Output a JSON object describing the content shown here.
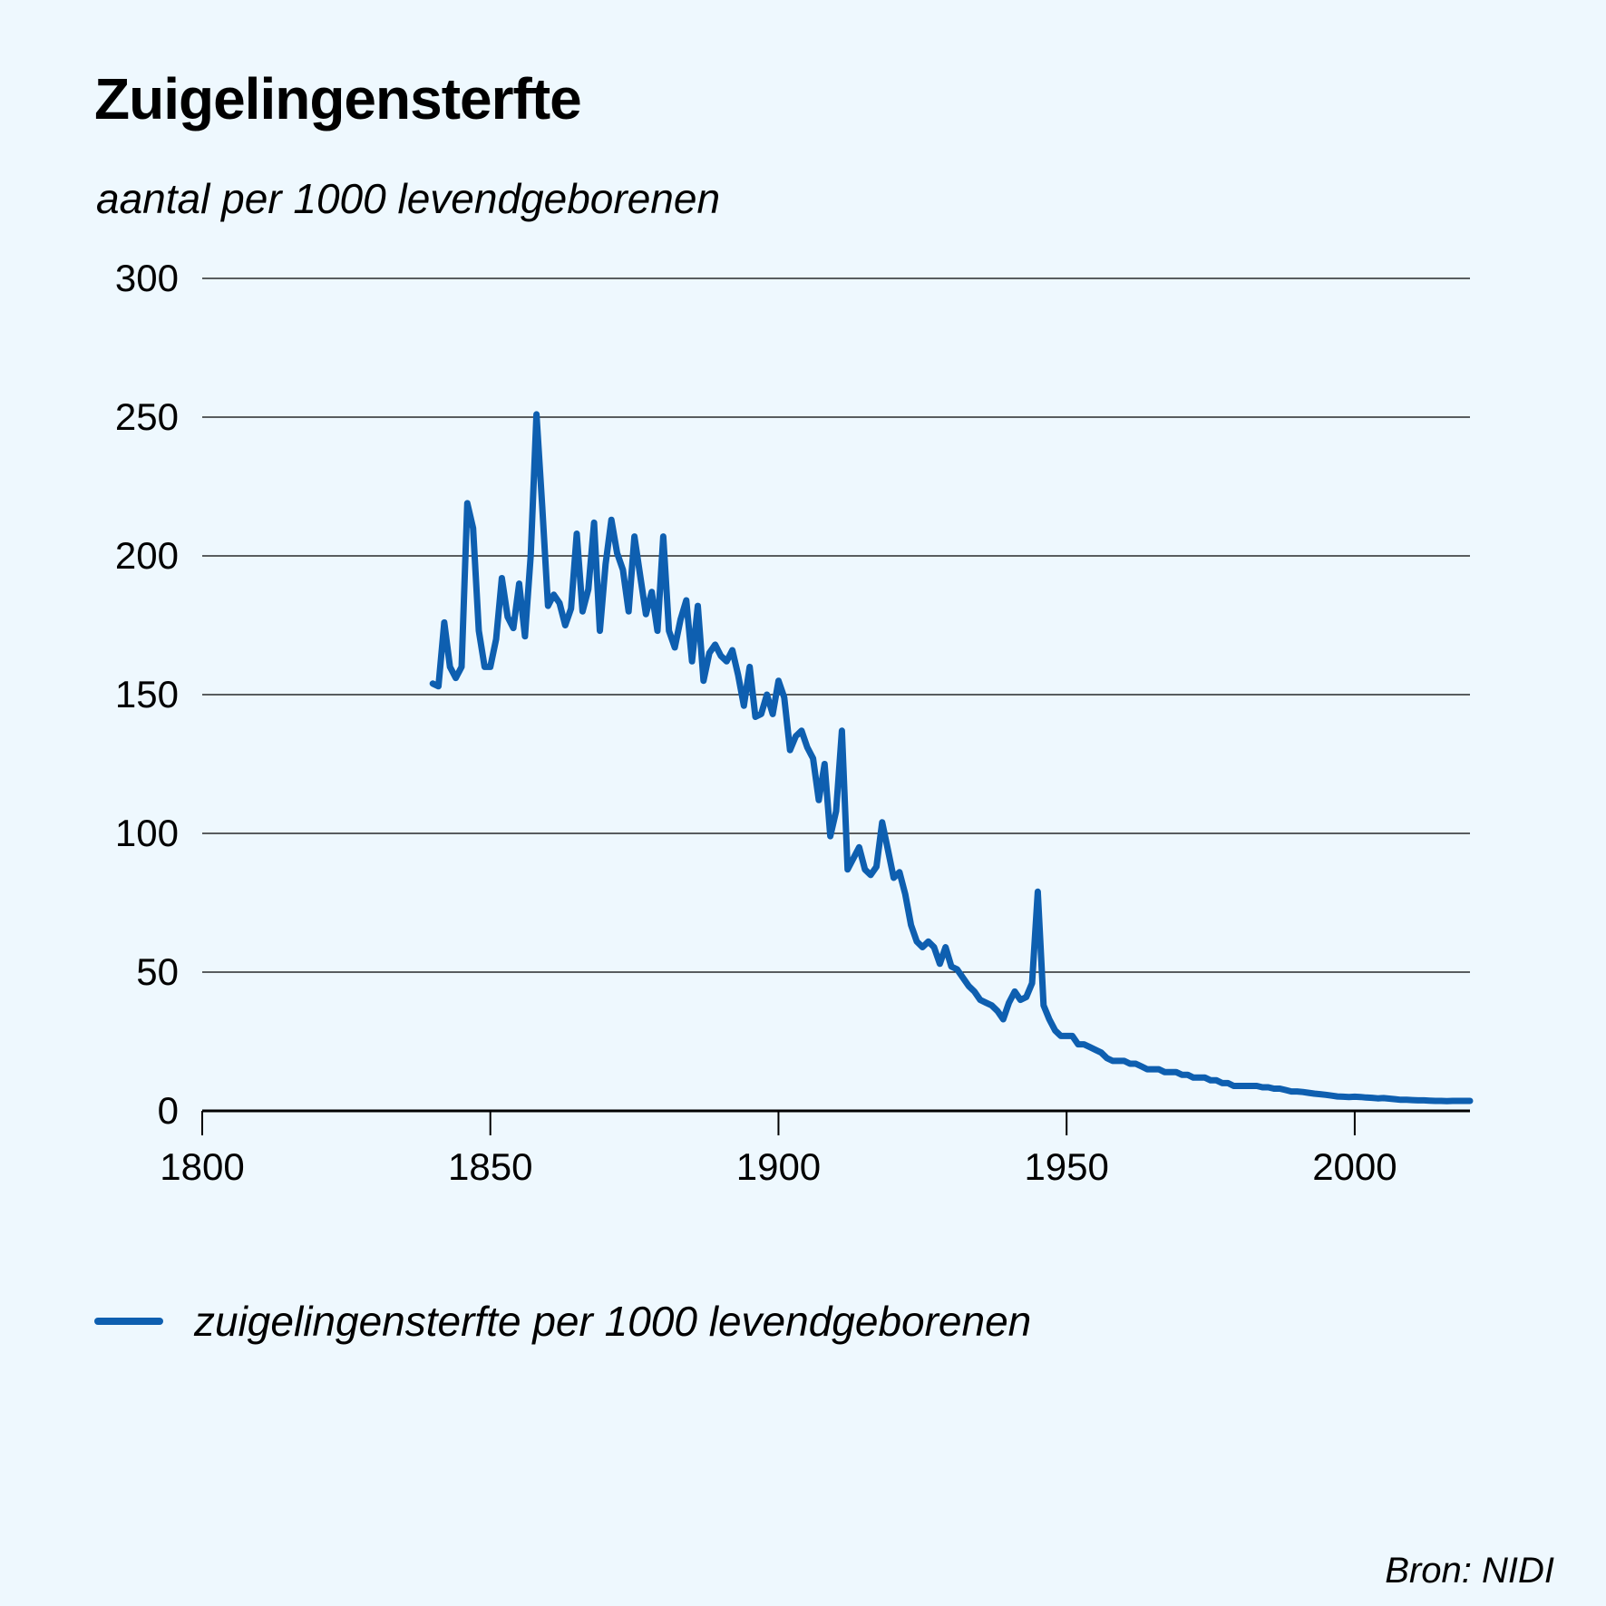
{
  "chart_data": {
    "type": "line",
    "title": "Zuigelingensterfte",
    "subtitle": "aantal per 1000 levendgeborenen",
    "xlim": [
      1800,
      2020
    ],
    "ylim": [
      0,
      300
    ],
    "x_ticks": [
      1800,
      1850,
      1900,
      1950,
      2000
    ],
    "y_ticks": [
      0,
      50,
      100,
      150,
      200,
      250,
      300
    ],
    "grid": "horizontal",
    "legend_position": "bottom-left",
    "source": "Bron: NIDI",
    "colors": {
      "line": "#0e5fb0",
      "axis": "#000000",
      "grid": "#000000",
      "background": "#eef8fe"
    },
    "series": [
      {
        "name": "zuigelingensterfte per 1000 levendgeborenen",
        "x": [
          1840,
          1841,
          1842,
          1843,
          1844,
          1845,
          1846,
          1847,
          1848,
          1849,
          1850,
          1851,
          1852,
          1853,
          1854,
          1855,
          1856,
          1857,
          1858,
          1859,
          1860,
          1861,
          1862,
          1863,
          1864,
          1865,
          1866,
          1867,
          1868,
          1869,
          1870,
          1871,
          1872,
          1873,
          1874,
          1875,
          1876,
          1877,
          1878,
          1879,
          1880,
          1881,
          1882,
          1883,
          1884,
          1885,
          1886,
          1887,
          1888,
          1889,
          1890,
          1891,
          1892,
          1893,
          1894,
          1895,
          1896,
          1897,
          1898,
          1899,
          1900,
          1901,
          1902,
          1903,
          1904,
          1905,
          1906,
          1907,
          1908,
          1909,
          1910,
          1911,
          1912,
          1913,
          1914,
          1915,
          1916,
          1917,
          1918,
          1919,
          1920,
          1921,
          1922,
          1923,
          1924,
          1925,
          1926,
          1927,
          1928,
          1929,
          1930,
          1931,
          1932,
          1933,
          1934,
          1935,
          1936,
          1937,
          1938,
          1939,
          1940,
          1941,
          1942,
          1943,
          1944,
          1945,
          1946,
          1947,
          1948,
          1949,
          1950,
          1951,
          1952,
          1953,
          1954,
          1955,
          1956,
          1957,
          1958,
          1959,
          1960,
          1961,
          1962,
          1963,
          1964,
          1965,
          1966,
          1967,
          1968,
          1969,
          1970,
          1971,
          1972,
          1973,
          1974,
          1975,
          1976,
          1977,
          1978,
          1979,
          1980,
          1981,
          1982,
          1983,
          1984,
          1985,
          1986,
          1987,
          1988,
          1989,
          1990,
          1991,
          1992,
          1993,
          1994,
          1995,
          1996,
          1997,
          1998,
          1999,
          2000,
          2001,
          2002,
          2003,
          2004,
          2005,
          2006,
          2007,
          2008,
          2009,
          2010,
          2011,
          2012,
          2013,
          2014,
          2015,
          2016,
          2017,
          2018,
          2019,
          2020
        ],
        "values": [
          154,
          153,
          176,
          160,
          156,
          160,
          219,
          210,
          173,
          160,
          160,
          170,
          192,
          178,
          174,
          190,
          171,
          200,
          251,
          218,
          182,
          186,
          183,
          175,
          181,
          208,
          180,
          188,
          212,
          173,
          197,
          213,
          201,
          195,
          180,
          207,
          193,
          179,
          187,
          173,
          207,
          173,
          167,
          177,
          184,
          162,
          182,
          155,
          165,
          168,
          164,
          162,
          166,
          157,
          146,
          160,
          142,
          143,
          150,
          143,
          155,
          149,
          130,
          135,
          137,
          131,
          127,
          112,
          125,
          99,
          108,
          137,
          87,
          91,
          95,
          87,
          85,
          88,
          104,
          94,
          84,
          86,
          78,
          67,
          61,
          59,
          61,
          59,
          53,
          59,
          52,
          51,
          48,
          45,
          43,
          40,
          39,
          38,
          36,
          33,
          39,
          43,
          40,
          41,
          46,
          79,
          38,
          33,
          29,
          27,
          27,
          27,
          24,
          24,
          23,
          22,
          21,
          19,
          18,
          18,
          18,
          17,
          17,
          16,
          15,
          15,
          15,
          14,
          14,
          14,
          13,
          13,
          12,
          12,
          12,
          11,
          11,
          10,
          10,
          9,
          9,
          9,
          9,
          9,
          8.5,
          8.5,
          8,
          8,
          7.5,
          7,
          7,
          6.8,
          6.5,
          6.2,
          6,
          5.8,
          5.5,
          5.2,
          5.1,
          5,
          5.1,
          5,
          4.8,
          4.7,
          4.5,
          4.6,
          4.4,
          4.2,
          4,
          4,
          3.9,
          3.8,
          3.8,
          3.7,
          3.6,
          3.6,
          3.5,
          3.6,
          3.6,
          3.6,
          3.6
        ]
      }
    ]
  }
}
